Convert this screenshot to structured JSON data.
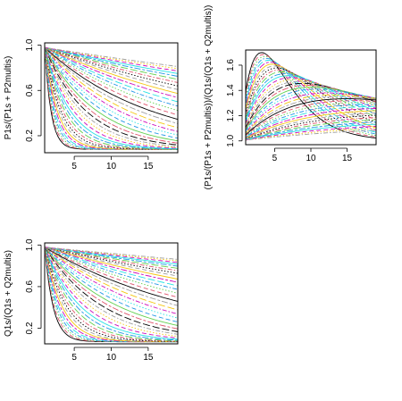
{
  "chart_data": [
    {
      "type": "line",
      "ylabel": "P1s/(P1s + P2multis)",
      "xlim": [
        1,
        19
      ],
      "ylim": [
        0.05,
        1.02
      ],
      "x_ticks": [
        5,
        10,
        15
      ],
      "y_ticks": [
        0.2,
        0.6,
        1.0
      ],
      "y_tick_labels": [
        "0.2",
        "0.6",
        "1.0"
      ],
      "grid": false,
      "legend": "none",
      "series_family": {
        "count": 40,
        "x_range": [
          1,
          19
        ],
        "form": "decay",
        "start_y": 0.98,
        "floor_y": 0.08,
        "half_x_min": 0.6,
        "half_x_max": 60
      }
    },
    {
      "type": "line",
      "ylabel": "(P1s/(P1s + P2multis))/(Q1s/(Q1s + Q2multis))",
      "xlim": [
        1,
        19
      ],
      "ylim": [
        0.97,
        1.72
      ],
      "x_ticks": [
        5,
        10,
        15
      ],
      "y_ticks": [
        1.0,
        1.2,
        1.4,
        1.6
      ],
      "y_tick_labels": [
        "1.0",
        "1.2",
        "1.4",
        "1.6"
      ],
      "grid": false,
      "legend": "none",
      "series_family": {
        "count": 40,
        "x_range": [
          1,
          19
        ],
        "form": "ratio-hump",
        "start_y": 1.0,
        "peak_y_max": 1.7,
        "peak_x_min": 3,
        "peak_x_max": 40
      }
    },
    {
      "type": "line",
      "ylabel": "Q1s/(Q1s + Q2multis)",
      "xlim": [
        1,
        19
      ],
      "ylim": [
        0.05,
        1.02
      ],
      "x_ticks": [
        5,
        10,
        15
      ],
      "y_ticks": [
        0.2,
        0.6,
        1.0
      ],
      "y_tick_labels": [
        "0.2",
        "0.6",
        "1.0"
      ],
      "grid": false,
      "legend": "none",
      "series_family": {
        "count": 40,
        "x_range": [
          1,
          19
        ],
        "form": "decay",
        "start_y": 0.98,
        "floor_y": 0.07,
        "half_x_min": 0.8,
        "half_x_max": 90
      }
    }
  ],
  "palette": [
    "#000000",
    "#df536b",
    "#61d04f",
    "#2297e6",
    "#28e2e5",
    "#cd0bbc",
    "#f5c710",
    "#9e9e9e"
  ],
  "line_styles": [
    "solid",
    "dashed",
    "dotted",
    "dotdash",
    "longdash",
    "twodash"
  ]
}
